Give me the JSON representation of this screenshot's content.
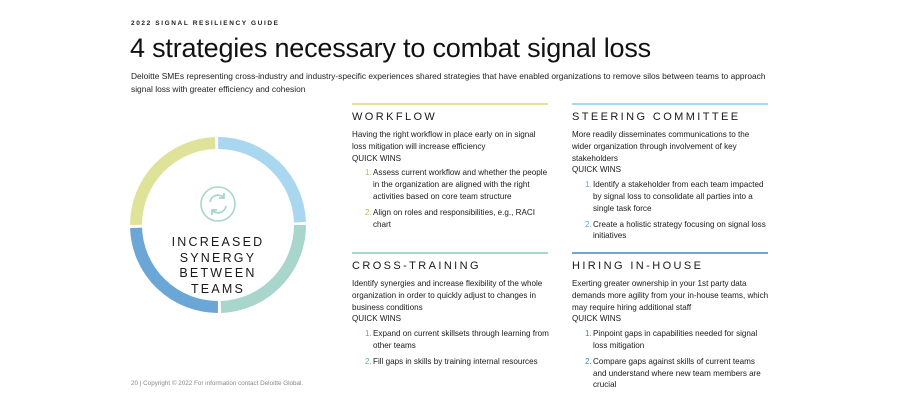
{
  "header": {
    "eyebrow": "2022 SIGNAL RESILIENCY GUIDE",
    "title": "4 strategies necessary to combat signal loss",
    "subtitle": "Deloitte SMEs representing cross-industry and industry-specific experiences shared strategies that have enabled organizations to remove silos between teams to approach signal loss with greater efficiency and cohesion"
  },
  "ring": {
    "lines": [
      "INCREASED",
      "SYNERGY",
      "BETWEEN",
      "TEAMS"
    ],
    "icon": "refresh-icon",
    "colors": {
      "top_left": "#dfe39a",
      "top_right": "#a9d7ef",
      "bottom_right": "#a8d5cc",
      "bottom_left": "#6aa6d6",
      "icon": "#a8d5cc"
    }
  },
  "cards": [
    {
      "key": "workflow",
      "accent": "#dfe39a",
      "heading": "WORKFLOW",
      "description": "Having the right workflow in place early on in signal loss mitigation will increase efficiency",
      "quick_wins_label": "QUICK WINS",
      "items": [
        {
          "num": "1.",
          "text": "Assess current workflow and whether the people in the organization are aligned with the right activities based on core team structure"
        },
        {
          "num": "2.",
          "text": "Align on roles and responsibilities, e.g., RACI chart"
        }
      ]
    },
    {
      "key": "steering",
      "accent": "#a9d7ef",
      "heading": "STEERING COMMITTEE",
      "description": "More readily disseminates communications to the wider organization through involvement of key stakeholders",
      "quick_wins_label": "QUICK WINS",
      "items": [
        {
          "num": "1.",
          "text": "Identify a stakeholder from each team impacted by signal loss to consolidate all parties into a single task force"
        },
        {
          "num": "2.",
          "text": "Create a holistic strategy focusing on signal loss initiatives"
        }
      ]
    },
    {
      "key": "cross-training",
      "accent": "#a8d5cc",
      "heading": "CROSS-TRAINING",
      "description": "Identify synergies and increase flexibility of the whole organization in order to quickly adjust to changes in business conditions",
      "quick_wins_label": "QUICK WINS",
      "items": [
        {
          "num": "1.",
          "text": "Expand on current skillsets through learning from other teams"
        },
        {
          "num": "2.",
          "text": "Fill gaps in skills by training internal resources"
        }
      ]
    },
    {
      "key": "hiring",
      "accent": "#6aa6d6",
      "heading": "HIRING IN-HOUSE",
      "description": "Exerting greater ownership in your 1st party data demands more agility from your in-house teams, which may require hiring additional staff",
      "quick_wins_label": "QUICK WINS",
      "items": [
        {
          "num": "1.",
          "text": "Pinpoint gaps in capabilities needed for signal loss mitigation"
        },
        {
          "num": "2.",
          "text": "Compare gaps against skills of current teams and understand where new team members are crucial"
        }
      ]
    }
  ],
  "footer": {
    "text": "20  |  Copyright © 2022 For information contact Deloitte Global."
  }
}
